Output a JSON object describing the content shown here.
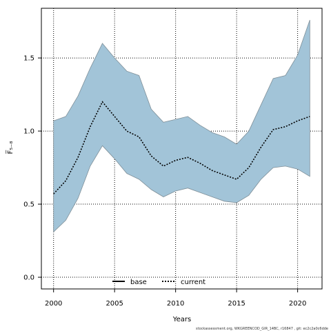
{
  "chart_data": {
    "type": "area",
    "title": "",
    "xlabel": "Years",
    "ylabel": "F̅₅₋₈",
    "xlim": [
      1999,
      2022
    ],
    "ylim": [
      -0.08,
      1.84
    ],
    "x_ticks": [
      "2000",
      "2005",
      "2010",
      "2015",
      "2020"
    ],
    "y_ticks": [
      "0.0",
      "0.5",
      "1.0",
      "1.5"
    ],
    "grid": true,
    "legend_position": "bottom-center",
    "years": [
      2000,
      2001,
      2002,
      2003,
      2004,
      2005,
      2006,
      2007,
      2008,
      2009,
      2010,
      2011,
      2012,
      2013,
      2014,
      2015,
      2016,
      2017,
      2018,
      2019,
      2020,
      2021
    ],
    "band": {
      "upper": [
        1.07,
        1.1,
        1.24,
        1.43,
        1.6,
        1.5,
        1.41,
        1.38,
        1.15,
        1.06,
        1.08,
        1.1,
        1.04,
        0.99,
        0.96,
        0.91,
        1.0,
        1.18,
        1.36,
        1.38,
        1.52,
        1.76
      ],
      "lower": [
        0.31,
        0.39,
        0.54,
        0.76,
        0.9,
        0.81,
        0.71,
        0.67,
        0.6,
        0.55,
        0.59,
        0.61,
        0.58,
        0.55,
        0.52,
        0.51,
        0.56,
        0.67,
        0.75,
        0.76,
        0.74,
        0.69
      ]
    },
    "series": [
      {
        "name": "base",
        "style": "solid",
        "values": []
      },
      {
        "name": "current",
        "style": "dotted",
        "values": [
          0.57,
          0.66,
          0.82,
          1.03,
          1.2,
          1.1,
          1.0,
          0.96,
          0.83,
          0.76,
          0.8,
          0.82,
          0.78,
          0.73,
          0.7,
          0.67,
          0.75,
          0.89,
          1.01,
          1.03,
          1.07,
          1.1
        ]
      }
    ],
    "colors": {
      "band_fill": "#a2c4d8",
      "band_stroke": "#7f8f98",
      "line": "#000000",
      "grid": "#000000"
    }
  },
  "footer": "stockassessment.org, WKGREENCOD_GIR_14BC, r16847 , git: ec2c2a0c6dde"
}
